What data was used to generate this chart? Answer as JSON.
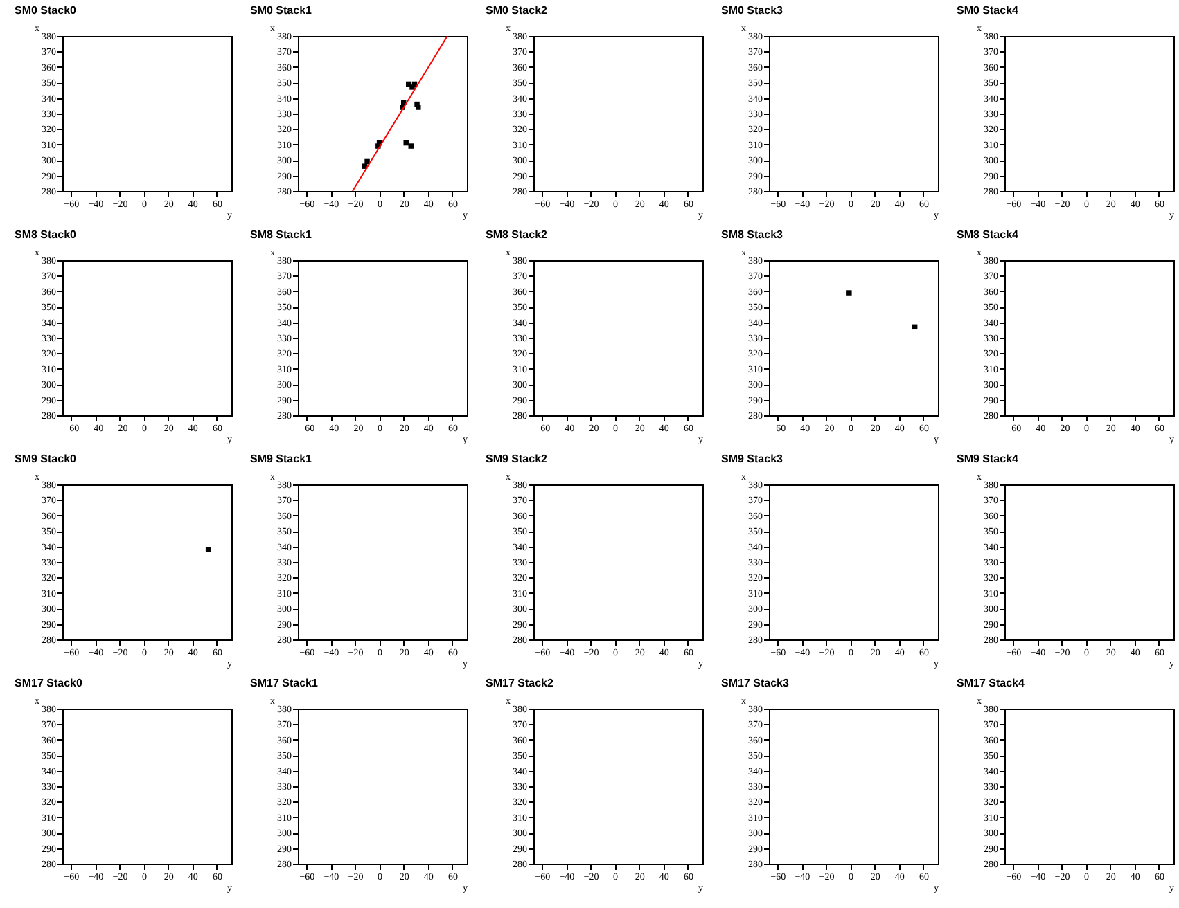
{
  "chart_data": [
    {
      "type": "scatter",
      "title": "SM0 Stack0",
      "xlabel": "y",
      "ylabel": "x",
      "xlim": [
        -67,
        72
      ],
      "ylim": [
        280,
        380
      ],
      "xticks": [
        -60,
        -40,
        -20,
        0,
        20,
        40,
        60
      ],
      "yticks": [
        280,
        290,
        300,
        310,
        320,
        330,
        340,
        350,
        360,
        370,
        380
      ]
    },
    {
      "type": "scatter",
      "title": "SM0 Stack1",
      "xlabel": "y",
      "ylabel": "x",
      "xlim": [
        -67,
        72
      ],
      "ylim": [
        280,
        380
      ],
      "xticks": [
        -60,
        -40,
        -20,
        0,
        20,
        40,
        60
      ],
      "yticks": [
        280,
        290,
        300,
        310,
        320,
        330,
        340,
        350,
        360,
        370,
        380
      ],
      "series": [
        {
          "marker": "square",
          "color": "#000000",
          "x": [
            -12,
            -10,
            -1,
            0,
            19,
            20,
            24,
            27,
            29,
            31,
            32,
            22,
            26
          ],
          "values": [
            296,
            299,
            309,
            311,
            334,
            337,
            349,
            347,
            349,
            336,
            334,
            311,
            309
          ]
        },
        {
          "type": "line",
          "color": "#ff0000",
          "x": [
            -22,
            56
          ],
          "values": [
            280,
            380
          ]
        }
      ]
    },
    {
      "type": "scatter",
      "title": "SM0 Stack2",
      "xlabel": "y",
      "ylabel": "x",
      "xlim": [
        -67,
        72
      ],
      "ylim": [
        280,
        380
      ],
      "xticks": [
        -60,
        -40,
        -20,
        0,
        20,
        40,
        60
      ],
      "yticks": [
        280,
        290,
        300,
        310,
        320,
        330,
        340,
        350,
        360,
        370,
        380
      ]
    },
    {
      "type": "scatter",
      "title": "SM0 Stack3",
      "xlabel": "y",
      "ylabel": "x",
      "xlim": [
        -67,
        72
      ],
      "ylim": [
        280,
        380
      ],
      "xticks": [
        -60,
        -40,
        -20,
        0,
        20,
        40,
        60
      ],
      "yticks": [
        280,
        290,
        300,
        310,
        320,
        330,
        340,
        350,
        360,
        370,
        380
      ]
    },
    {
      "type": "scatter",
      "title": "SM0 Stack4",
      "xlabel": "y",
      "ylabel": "x",
      "xlim": [
        -67,
        72
      ],
      "ylim": [
        280,
        380
      ],
      "xticks": [
        -60,
        -40,
        -20,
        0,
        20,
        40,
        60
      ],
      "yticks": [
        280,
        290,
        300,
        310,
        320,
        330,
        340,
        350,
        360,
        370,
        380
      ]
    },
    {
      "type": "scatter",
      "title": "SM8 Stack0",
      "xlabel": "y",
      "ylabel": "x",
      "xlim": [
        -67,
        72
      ],
      "ylim": [
        280,
        380
      ],
      "xticks": [
        -60,
        -40,
        -20,
        0,
        20,
        40,
        60
      ],
      "yticks": [
        280,
        290,
        300,
        310,
        320,
        330,
        340,
        350,
        360,
        370,
        380
      ]
    },
    {
      "type": "scatter",
      "title": "SM8 Stack1",
      "xlabel": "y",
      "ylabel": "x",
      "xlim": [
        -67,
        72
      ],
      "ylim": [
        280,
        380
      ],
      "xticks": [
        -60,
        -40,
        -20,
        0,
        20,
        40,
        60
      ],
      "yticks": [
        280,
        290,
        300,
        310,
        320,
        330,
        340,
        350,
        360,
        370,
        380
      ]
    },
    {
      "type": "scatter",
      "title": "SM8 Stack2",
      "xlabel": "y",
      "ylabel": "x",
      "xlim": [
        -67,
        72
      ],
      "ylim": [
        280,
        380
      ],
      "xticks": [
        -60,
        -40,
        -20,
        0,
        20,
        40,
        60
      ],
      "yticks": [
        280,
        290,
        300,
        310,
        320,
        330,
        340,
        350,
        360,
        370,
        380
      ]
    },
    {
      "type": "scatter",
      "title": "SM8 Stack3",
      "xlabel": "y",
      "ylabel": "x",
      "xlim": [
        -67,
        72
      ],
      "ylim": [
        280,
        380
      ],
      "xticks": [
        -60,
        -40,
        -20,
        0,
        20,
        40,
        60
      ],
      "yticks": [
        280,
        290,
        300,
        310,
        320,
        330,
        340,
        350,
        360,
        370,
        380
      ],
      "marker": "square",
      "series": [
        {
          "color": "#000000",
          "x": [
            -1,
            53
          ],
          "values": [
            359,
            337
          ]
        }
      ]
    },
    {
      "type": "scatter",
      "title": "SM8 Stack4",
      "xlabel": "y",
      "ylabel": "x",
      "xlim": [
        -67,
        72
      ],
      "ylim": [
        280,
        380
      ],
      "xticks": [
        -60,
        -40,
        -20,
        0,
        20,
        40,
        60
      ],
      "yticks": [
        280,
        290,
        300,
        310,
        320,
        330,
        340,
        350,
        360,
        370,
        380
      ]
    },
    {
      "type": "scatter",
      "title": "SM9 Stack0",
      "xlabel": "y",
      "ylabel": "x",
      "xlim": [
        -67,
        72
      ],
      "ylim": [
        280,
        380
      ],
      "xticks": [
        -60,
        -40,
        -20,
        0,
        20,
        40,
        60
      ],
      "yticks": [
        280,
        290,
        300,
        310,
        320,
        330,
        340,
        350,
        360,
        370,
        380
      ],
      "marker": "square",
      "series": [
        {
          "color": "#000000",
          "x": [
            53
          ],
          "values": [
            338
          ]
        }
      ]
    },
    {
      "type": "scatter",
      "title": "SM9 Stack1",
      "xlabel": "y",
      "ylabel": "x",
      "xlim": [
        -67,
        72
      ],
      "ylim": [
        280,
        380
      ],
      "xticks": [
        -60,
        -40,
        -20,
        0,
        20,
        40,
        60
      ],
      "yticks": [
        280,
        290,
        300,
        310,
        320,
        330,
        340,
        350,
        360,
        370,
        380
      ]
    },
    {
      "type": "scatter",
      "title": "SM9 Stack2",
      "xlabel": "y",
      "ylabel": "x",
      "xlim": [
        -67,
        72
      ],
      "ylim": [
        280,
        380
      ],
      "xticks": [
        -60,
        -40,
        -20,
        0,
        20,
        40,
        60
      ],
      "yticks": [
        280,
        290,
        300,
        310,
        320,
        330,
        340,
        350,
        360,
        370,
        380
      ]
    },
    {
      "type": "scatter",
      "title": "SM9 Stack3",
      "xlabel": "y",
      "ylabel": "x",
      "xlim": [
        -67,
        72
      ],
      "ylim": [
        280,
        380
      ],
      "xticks": [
        -60,
        -40,
        -20,
        0,
        20,
        40,
        60
      ],
      "yticks": [
        280,
        290,
        300,
        310,
        320,
        330,
        340,
        350,
        360,
        370,
        380
      ]
    },
    {
      "type": "scatter",
      "title": "SM9 Stack4",
      "xlabel": "y",
      "ylabel": "x",
      "xlim": [
        -67,
        72
      ],
      "ylim": [
        280,
        380
      ],
      "xticks": [
        -60,
        -40,
        -20,
        0,
        20,
        40,
        60
      ],
      "yticks": [
        280,
        290,
        300,
        310,
        320,
        330,
        340,
        350,
        360,
        370,
        380
      ]
    },
    {
      "type": "scatter",
      "title": "SM17 Stack0",
      "xlabel": "y",
      "ylabel": "x",
      "xlim": [
        -67,
        72
      ],
      "ylim": [
        280,
        380
      ],
      "xticks": [
        -60,
        -40,
        -20,
        0,
        20,
        40,
        60
      ],
      "yticks": [
        280,
        290,
        300,
        310,
        320,
        330,
        340,
        350,
        360,
        370,
        380
      ]
    },
    {
      "type": "scatter",
      "title": "SM17 Stack1",
      "xlabel": "y",
      "ylabel": "x",
      "xlim": [
        -67,
        72
      ],
      "ylim": [
        280,
        380
      ],
      "xticks": [
        -60,
        -40,
        -20,
        0,
        20,
        40,
        60
      ],
      "yticks": [
        280,
        290,
        300,
        310,
        320,
        330,
        340,
        350,
        360,
        370,
        380
      ]
    },
    {
      "type": "scatter",
      "title": "SM17 Stack2",
      "xlabel": "y",
      "ylabel": "x",
      "xlim": [
        -67,
        72
      ],
      "ylim": [
        280,
        380
      ],
      "xticks": [
        -60,
        -40,
        -20,
        0,
        20,
        40,
        60
      ],
      "yticks": [
        280,
        290,
        300,
        310,
        320,
        330,
        340,
        350,
        360,
        370,
        380
      ]
    },
    {
      "type": "scatter",
      "title": "SM17 Stack3",
      "xlabel": "y",
      "ylabel": "x",
      "xlim": [
        -67,
        72
      ],
      "ylim": [
        280,
        380
      ],
      "xticks": [
        -60,
        -40,
        -20,
        0,
        20,
        40,
        60
      ],
      "yticks": [
        280,
        290,
        300,
        310,
        320,
        330,
        340,
        350,
        360,
        370,
        380
      ]
    },
    {
      "type": "scatter",
      "title": "SM17 Stack4",
      "xlabel": "y",
      "ylabel": "x",
      "xlim": [
        -67,
        72
      ],
      "ylim": [
        280,
        380
      ],
      "xticks": [
        -60,
        -40,
        -20,
        0,
        20,
        40,
        60
      ],
      "yticks": [
        280,
        290,
        300,
        310,
        320,
        330,
        340,
        350,
        360,
        370,
        380
      ]
    }
  ]
}
